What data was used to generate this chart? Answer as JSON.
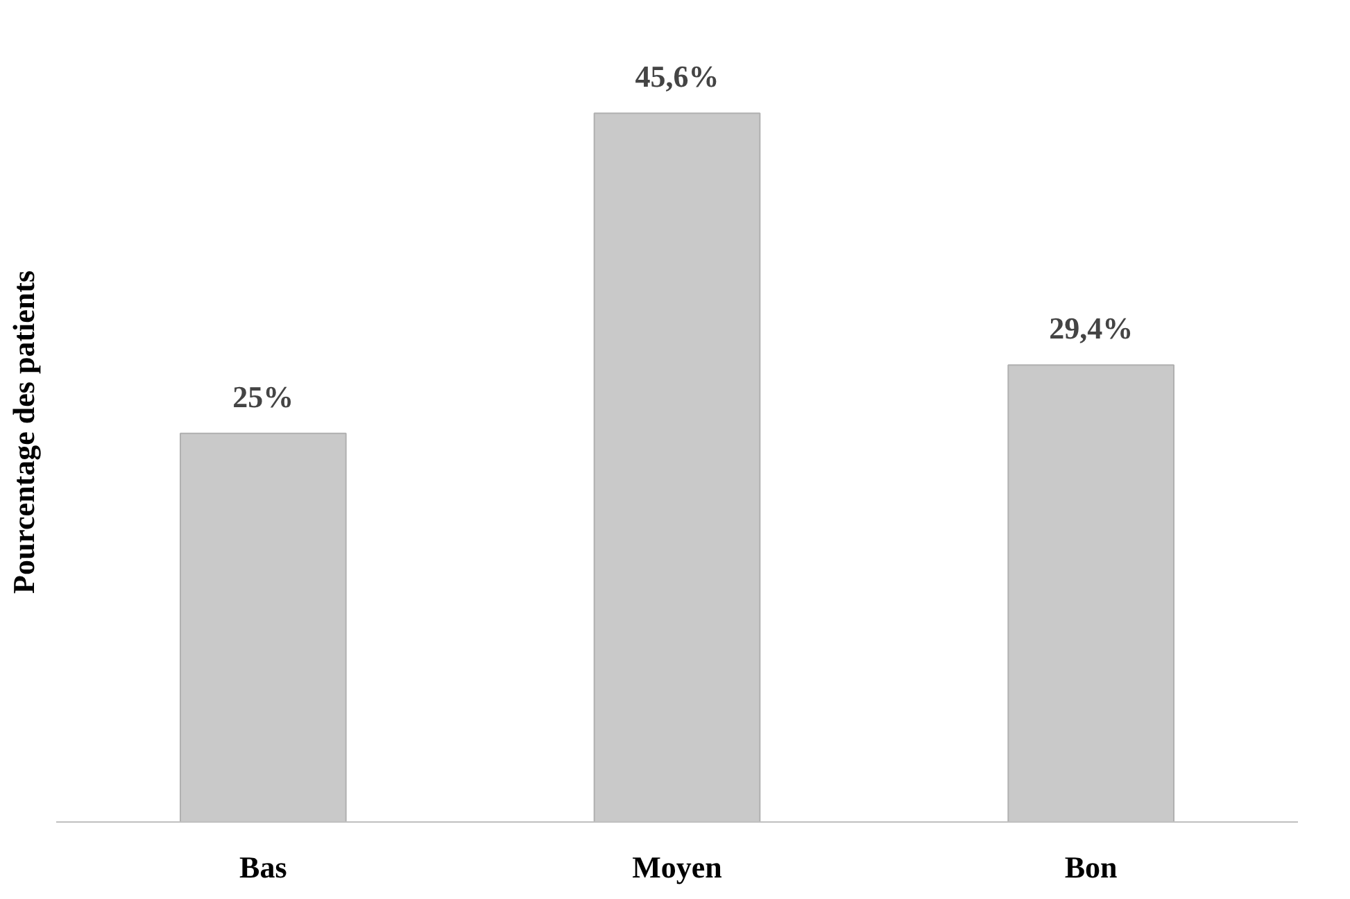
{
  "chart_data": {
    "type": "bar",
    "ylabel": "Pourcentage des patients",
    "categories": [
      "Bas",
      "Moyen",
      "Bon"
    ],
    "values": [
      25,
      45.6,
      29.4
    ],
    "value_labels": [
      "25%",
      "45,6%",
      "29,4%"
    ],
    "color": "#c9c9c9",
    "grid": false
  }
}
